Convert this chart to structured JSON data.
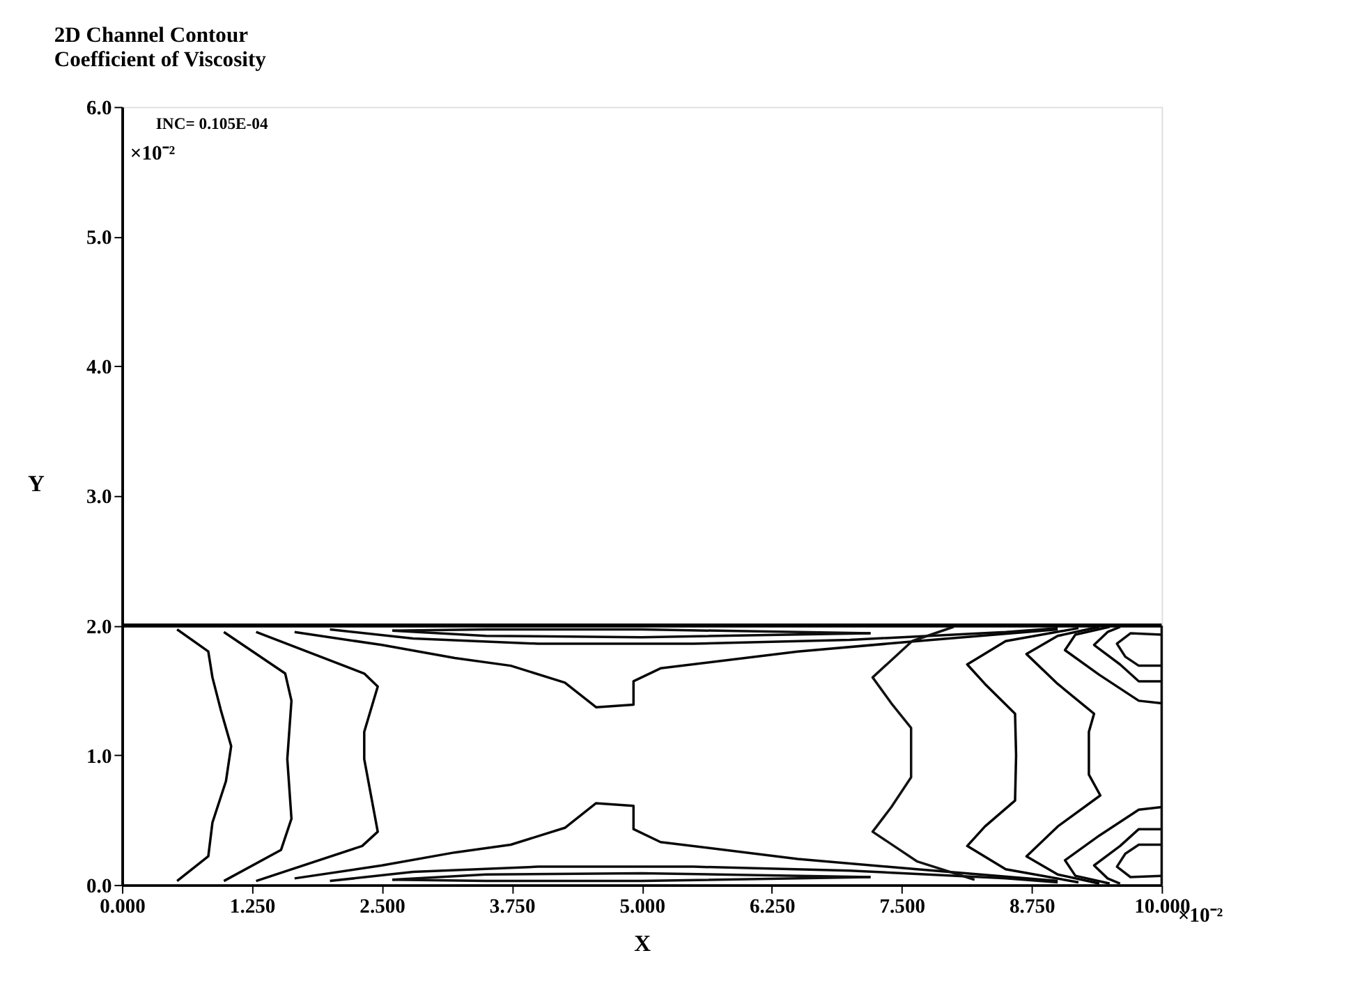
{
  "chart_data": {
    "type": "line",
    "title": "2D Channel Contour",
    "subtitle": "Coefficient of Viscosity",
    "xlabel": "X",
    "ylabel": "Y",
    "annotations": [
      "INC= 0.105E-04",
      "×10⁻²",
      "×10⁻²"
    ],
    "ref_lines": [
      {
        "axis": "y",
        "value": 2,
        "color": "#000000"
      }
    ],
    "xlim": [
      0,
      10
    ],
    "ylim": [
      0,
      6
    ],
    "xticks": [
      {
        "value": 0,
        "label": "0.000"
      },
      {
        "value": 1.25,
        "label": "1.250"
      },
      {
        "value": 2.5,
        "label": "2.500"
      },
      {
        "value": 3.75,
        "label": "3.750"
      },
      {
        "value": 5,
        "label": "5.000"
      },
      {
        "value": 6.25,
        "label": "6.250"
      },
      {
        "value": 7.5,
        "label": "7.500"
      },
      {
        "value": 8.75,
        "label": "8.750"
      },
      {
        "value": 10,
        "label": "10.000"
      }
    ],
    "yticks": [
      {
        "value": 0,
        "label": "0.0"
      },
      {
        "value": 1,
        "label": "1.0"
      },
      {
        "value": 2,
        "label": "2.0"
      },
      {
        "value": 3,
        "label": "3.0"
      },
      {
        "value": 4,
        "label": "4.0"
      },
      {
        "value": 5,
        "label": "5.0"
      },
      {
        "value": 6,
        "label": "6.0"
      }
    ],
    "grid": false,
    "legend": false,
    "marker": "none",
    "line_style": "solid",
    "series": [
      {
        "color": "#111111",
        "x": [
          10,
          10
        ],
        "values": [
          0,
          2
        ]
      },
      {
        "color": "#000000",
        "x": [
          0.53,
          0.83,
          0.87,
          0.95,
          1.05,
          1.0,
          0.87,
          0.83,
          0.53
        ],
        "values": [
          1.97,
          1.8,
          1.6,
          1.35,
          1.07,
          0.8,
          0.48,
          0.22,
          0.03
        ]
      },
      {
        "color": "#020202",
        "x": [
          0.98,
          1.57,
          1.63,
          1.59,
          1.63,
          1.53,
          0.98
        ],
        "values": [
          1.95,
          1.63,
          1.42,
          0.97,
          0.51,
          0.27,
          0.03
        ]
      },
      {
        "color": "#040404",
        "x": [
          1.29,
          2.33,
          2.46,
          2.33,
          2.33,
          2.46,
          2.31,
          1.29
        ],
        "values": [
          1.95,
          1.63,
          1.53,
          1.18,
          0.97,
          0.41,
          0.3,
          0.03
        ]
      },
      {
        "color": "#060606",
        "x": [
          1.66,
          2.5,
          3.2,
          3.74,
          4.26,
          4.56,
          4.92,
          4.92,
          5.18,
          6.5,
          7.65,
          9.0
        ],
        "values": [
          1.95,
          1.85,
          1.75,
          1.69,
          1.56,
          1.37,
          1.39,
          1.57,
          1.67,
          1.8,
          1.88,
          1.97
        ]
      },
      {
        "color": "#080808",
        "x": [
          1.66,
          2.5,
          3.2,
          3.74,
          4.26,
          4.56,
          4.92,
          4.92,
          5.18,
          6.5,
          7.65,
          9.0
        ],
        "values": [
          0.05,
          0.15,
          0.25,
          0.31,
          0.44,
          0.63,
          0.61,
          0.43,
          0.33,
          0.2,
          0.12,
          0.03
        ]
      },
      {
        "color": "#0a0a0a",
        "x": [
          2.0,
          2.8,
          4,
          5.5,
          7,
          8.5,
          9.0
        ],
        "values": [
          1.97,
          1.9,
          1.86,
          1.86,
          1.89,
          1.95,
          1.98
        ]
      },
      {
        "color": "#0c0c0c",
        "x": [
          2.0,
          2.8,
          4,
          5.5,
          7,
          8.5,
          9.0
        ],
        "values": [
          0.03,
          0.1,
          0.14,
          0.14,
          0.11,
          0.05,
          0.02
        ]
      },
      {
        "color": "#0e0e0e",
        "x": [
          2.6,
          3.5,
          5,
          7.2
        ],
        "values": [
          1.96,
          1.92,
          1.91,
          1.94
        ]
      },
      {
        "color": "#0e0e0e",
        "x": [
          2.6,
          3.5,
          5,
          7.2
        ],
        "values": [
          1.96,
          1.97,
          1.97,
          1.94
        ]
      },
      {
        "color": "#101010",
        "x": [
          2.6,
          3.5,
          5,
          7.2
        ],
        "values": [
          0.04,
          0.08,
          0.09,
          0.06
        ]
      },
      {
        "color": "#101010",
        "x": [
          2.6,
          3.5,
          5,
          7.2
        ],
        "values": [
          0.04,
          0.03,
          0.03,
          0.06
        ]
      },
      {
        "color": "#121212",
        "x": [
          8.0,
          7.6,
          7.22,
          7.4,
          7.59,
          7.59,
          7.4,
          7.22,
          7.65,
          8.2
        ],
        "values": [
          1.99,
          1.88,
          1.6,
          1.4,
          1.21,
          0.83,
          0.6,
          0.41,
          0.18,
          0.04
        ]
      },
      {
        "color": "#010101",
        "x": [
          9.2,
          8.5,
          8.13,
          8.3,
          8.59,
          8.6,
          8.59,
          8.3,
          8.13,
          8.5,
          9.2
        ],
        "values": [
          1.98,
          1.88,
          1.7,
          1.55,
          1.32,
          1.0,
          0.65,
          0.45,
          0.3,
          0.12,
          0.02
        ]
      },
      {
        "color": "#030303",
        "x": [
          9.4,
          9.0,
          8.7,
          9.0,
          9.35,
          9.3,
          9.3,
          9.41,
          9.0,
          8.7,
          9.0,
          9.4
        ],
        "values": [
          1.99,
          1.92,
          1.78,
          1.55,
          1.32,
          1.18,
          0.85,
          0.69,
          0.45,
          0.22,
          0.08,
          0.01
        ]
      },
      {
        "color": "#050505",
        "x": [
          9.5,
          9.17,
          9.07,
          9.4,
          9.78,
          10.0
        ],
        "values": [
          1.99,
          1.93,
          1.81,
          1.62,
          1.42,
          1.4
        ]
      },
      {
        "color": "#070707",
        "x": [
          10.0,
          9.78,
          9.4,
          9.07,
          9.17,
          9.5
        ],
        "values": [
          0.6,
          0.58,
          0.38,
          0.19,
          0.07,
          0.01
        ]
      },
      {
        "color": "#090909",
        "x": [
          9.6,
          9.48,
          9.35,
          9.6,
          9.78,
          10.0
        ],
        "values": [
          1.99,
          1.95,
          1.85,
          1.7,
          1.57,
          1.57
        ]
      },
      {
        "color": "#0b0b0b",
        "x": [
          9.6,
          9.48,
          9.35,
          9.6,
          9.78,
          10.0
        ],
        "values": [
          0.01,
          0.05,
          0.15,
          0.3,
          0.43,
          0.43
        ]
      },
      {
        "color": "#0d0d0d",
        "x": [
          10.0,
          9.7,
          9.57,
          9.65,
          9.78,
          10.0
        ],
        "values": [
          1.93,
          1.94,
          1.86,
          1.76,
          1.69,
          1.69
        ]
      },
      {
        "color": "#0f0f0f",
        "x": [
          10.0,
          9.7,
          9.57,
          9.65,
          9.78,
          10.0
        ],
        "values": [
          0.07,
          0.06,
          0.14,
          0.24,
          0.31,
          0.31
        ]
      }
    ]
  }
}
